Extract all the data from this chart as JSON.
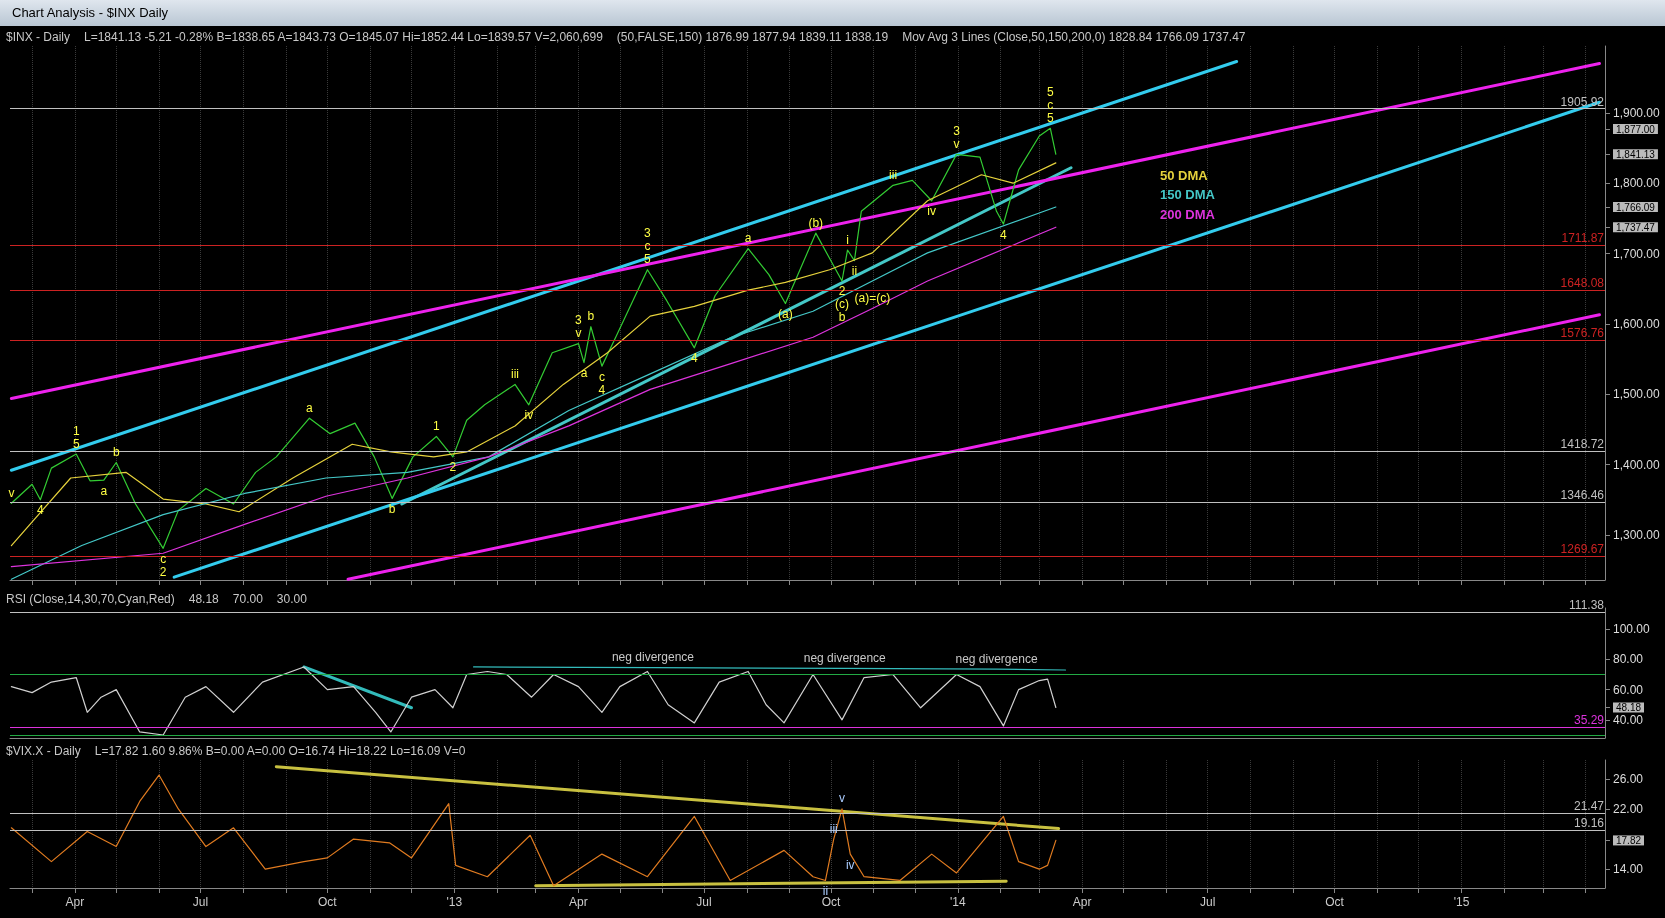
{
  "chart_data": [
    {
      "type": "line",
      "title": "Chart Analysis - $INX Daily",
      "xlim": [
        "2012-02-14",
        "2015-04-15"
      ],
      "xticks": [
        {
          "value": "2012-03-01",
          "label": null
        },
        {
          "value": "2012-04-01",
          "label": null
        },
        {
          "value": "2012-05-01",
          "label": null
        },
        {
          "value": "2012-06-01",
          "label": null
        },
        {
          "value": "2012-07-01",
          "label": null
        },
        {
          "value": "2012-08-01",
          "label": null
        },
        {
          "value": "2012-09-01",
          "label": null
        },
        {
          "value": "2012-10-01",
          "label": null
        },
        {
          "value": "2012-11-01",
          "label": null
        },
        {
          "value": "2012-12-01",
          "label": null
        },
        {
          "value": "2013-01-01",
          "label": null
        },
        {
          "value": "2013-02-01",
          "label": null
        },
        {
          "value": "2013-03-01",
          "label": null
        },
        {
          "value": "2013-04-01",
          "label": null
        },
        {
          "value": "2013-05-01",
          "label": null
        },
        {
          "value": "2013-06-01",
          "label": null
        },
        {
          "value": "2013-07-01",
          "label": null
        },
        {
          "value": "2013-08-01",
          "label": null
        },
        {
          "value": "2013-09-01",
          "label": null
        },
        {
          "value": "2013-10-01",
          "label": null
        },
        {
          "value": "2013-11-01",
          "label": null
        },
        {
          "value": "2013-12-01",
          "label": null
        },
        {
          "value": "2014-01-01",
          "label": null
        },
        {
          "value": "2014-02-01",
          "label": null
        },
        {
          "value": "2014-03-01",
          "label": null
        },
        {
          "value": "2014-04-01",
          "label": null
        },
        {
          "value": "2014-05-01",
          "label": null
        },
        {
          "value": "2014-06-01",
          "label": null
        },
        {
          "value": "2014-07-01",
          "label": null
        },
        {
          "value": "2014-08-01",
          "label": null
        },
        {
          "value": "2014-09-01",
          "label": null
        },
        {
          "value": "2014-10-01",
          "label": null
        },
        {
          "value": "2014-11-01",
          "label": null
        },
        {
          "value": "2014-12-01",
          "label": null
        },
        {
          "value": "2015-01-01",
          "label": null
        },
        {
          "value": "2015-02-01",
          "label": null
        },
        {
          "value": "2015-03-01",
          "label": null
        },
        {
          "value": "2015-04-01",
          "label": null
        }
      ],
      "ylim": [
        1236,
        1995
      ],
      "yticks": [
        {
          "value": 1300,
          "label": "1,300.00"
        },
        {
          "value": 1400,
          "label": "1,400.00"
        },
        {
          "value": 1500,
          "label": "1,500.00"
        },
        {
          "value": 1600,
          "label": "1,600.00"
        },
        {
          "value": 1700,
          "label": "1,700.00"
        },
        {
          "value": 1737.47,
          "label": "1,737.47"
        },
        {
          "value": 1766.09,
          "label": "1,766.09"
        },
        {
          "value": 1800,
          "label": "1,800.00"
        },
        {
          "value": 1841.13,
          "label": "1,841.13"
        },
        {
          "value": 1877,
          "label": "1,877.00"
        },
        {
          "value": 1900,
          "label": "1,900.00"
        }
      ],
      "tick_labels": "y",
      "grid": "x",
      "legend": "right",
      "series": [
        {
          "color": "#33cc33",
          "x": [
            "2012-02-15",
            "2012-03-01",
            "2012-03-07",
            "2012-03-15",
            "2012-04-02",
            "2012-04-12",
            "2012-04-22",
            "2012-05-01",
            "2012-05-15",
            "2012-06-04",
            "2012-06-15",
            "2012-07-05",
            "2012-07-25",
            "2012-08-10",
            "2012-08-25",
            "2012-09-18",
            "2012-10-03",
            "2012-10-21",
            "2012-11-04",
            "2012-11-17",
            "2012-12-02",
            "2012-12-19",
            "2012-12-31",
            "2013-01-10",
            "2013-01-23",
            "2013-02-14",
            "2013-02-24",
            "2013-03-13",
            "2013-04-01",
            "2013-04-05",
            "2013-04-10",
            "2013-04-18",
            "2013-04-28",
            "2013-05-21",
            "2013-06-04",
            "2013-06-24",
            "2013-07-09",
            "2013-08-02",
            "2013-08-17",
            "2013-08-29",
            "2013-09-20",
            "2013-10-09",
            "2013-10-13",
            "2013-10-18",
            "2013-10-23",
            "2013-11-15",
            "2013-11-29",
            "2013-12-13",
            "2013-12-31",
            "2014-01-17",
            "2014-01-29",
            "2014-02-03",
            "2014-02-14",
            "2014-03-01",
            "2014-03-09",
            "2014-03-13"
          ],
          "values": [
            1345,
            1372,
            1350,
            1395,
            1415,
            1377,
            1378,
            1403,
            1344,
            1281,
            1335,
            1366,
            1344,
            1389,
            1411,
            1466,
            1444,
            1459,
            1411,
            1352,
            1411,
            1440,
            1411,
            1463,
            1485,
            1514,
            1485,
            1559,
            1572,
            1545,
            1596,
            1540,
            1581,
            1677,
            1633,
            1566,
            1640,
            1707,
            1670,
            1629,
            1729,
            1661,
            1705,
            1690,
            1760,
            1797,
            1804,
            1775,
            1841,
            1837,
            1760,
            1742,
            1819,
            1867,
            1878,
            1841.13
          ]
        },
        {
          "name": "50 DMA",
          "color": "#e6d23c",
          "x": [
            "2012-02-15",
            "2012-03-29",
            "2012-05-08",
            "2012-06-04",
            "2012-07-05",
            "2012-07-29",
            "2012-09-06",
            "2012-10-19",
            "2012-11-16",
            "2012-12-17",
            "2013-01-10",
            "2013-02-14",
            "2013-03-21",
            "2013-04-22",
            "2013-05-23",
            "2013-06-24",
            "2013-08-02",
            "2013-08-29",
            "2013-09-30",
            "2013-10-31",
            "2013-12-10",
            "2014-01-18",
            "2014-02-10",
            "2014-03-13"
          ],
          "values": [
            1285,
            1381,
            1389,
            1351,
            1344,
            1333,
            1381,
            1429,
            1418,
            1411,
            1418,
            1455,
            1514,
            1559,
            1611,
            1625,
            1648,
            1659,
            1677,
            1701,
            1775,
            1812,
            1800,
            1828.84
          ]
        },
        {
          "name": "150 DMA",
          "color": "#44c8c8",
          "x": [
            "2012-02-15",
            "2012-04-06",
            "2012-06-04",
            "2012-08-02",
            "2012-09-30",
            "2012-11-28",
            "2013-01-26",
            "2013-03-25",
            "2013-05-23",
            "2013-07-21",
            "2013-09-18",
            "2013-12-10",
            "2014-03-13"
          ],
          "values": [
            1237,
            1285,
            1329,
            1359,
            1381,
            1389,
            1411,
            1477,
            1529,
            1581,
            1618,
            1701,
            1766.09
          ]
        },
        {
          "name": "200 DMA",
          "color": "#dd33dd",
          "x": [
            "2012-02-15",
            "2012-06-04",
            "2012-08-02",
            "2012-09-30",
            "2012-11-28",
            "2013-01-26",
            "2013-03-25",
            "2013-05-23",
            "2013-07-21",
            "2013-09-18",
            "2013-10-31",
            "2013-12-10",
            "2014-03-13"
          ],
          "values": [
            1255,
            1274,
            1315,
            1355,
            1381,
            1411,
            1455,
            1507,
            1544,
            1581,
            1622,
            1661,
            1737.47
          ]
        },
        {
          "color": "#44c8c8",
          "x": [
            "2012-11-24",
            "2014-03-24"
          ],
          "values": [
            1344,
            1822
          ]
        },
        {
          "color": "#33ccee",
          "x": [
            "2012-02-15",
            "2014-07-22"
          ],
          "values": [
            1392,
            1973
          ]
        },
        {
          "color": "#33ccee",
          "x": [
            "2012-06-12",
            "2015-04-11"
          ],
          "values": [
            1240,
            1915
          ]
        },
        {
          "color": "#ee22ee",
          "x": [
            "2012-02-15",
            "2015-04-11"
          ],
          "values": [
            1494,
            1970
          ]
        },
        {
          "color": "#ee22ee",
          "x": [
            "2012-10-16",
            "2015-04-11"
          ],
          "values": [
            1237,
            1613
          ]
        }
      ],
      "ref_lines": [
        {
          "axis": "y",
          "value": 1905.92,
          "label": "1905.92",
          "color": "#c0c0c0"
        },
        {
          "axis": "y",
          "value": 1711.87,
          "label": "1711.87",
          "color": "#cc2222"
        },
        {
          "axis": "y",
          "value": 1648.08,
          "label": "1648.08",
          "color": "#cc2222"
        },
        {
          "axis": "y",
          "value": 1576.76,
          "label": "1576.76",
          "color": "#cc2222"
        },
        {
          "axis": "y",
          "value": 1418.72,
          "label": "1418.72",
          "color": "#c0c0c0"
        },
        {
          "axis": "y",
          "value": 1346.46,
          "label": "1346.46",
          "color": "#c0c0c0"
        },
        {
          "axis": "y",
          "value": 1269.67,
          "label": "1269.67",
          "color": "#cc2222"
        }
      ],
      "annotations": [
        "$INX - Daily",
        "L=1841.13 -5.21 -0.28% B=1838.65 A=1843.73 O=1845.07 Hi=1852.44 Lo=1839.57 V=2,060,699",
        "(50,FALSE,150) 1876.99 1877.94 1839.11 1838.19",
        "Mov Avg 3 Lines (Close,50,150,200,0) 1828.84 1766.09 1737.47",
        {
          "text": "v",
          "x": "2012-02-15",
          "y": 1345
        },
        {
          "text": "4",
          "x": "2012-03-07",
          "y": 1350
        },
        {
          "text": "1\n5",
          "x": "2012-04-02",
          "y": 1415
        },
        {
          "text": "a",
          "x": "2012-04-22",
          "y": 1378
        },
        {
          "text": "b",
          "x": "2012-05-01",
          "y": 1403
        },
        {
          "text": "c\n2",
          "x": "2012-06-04",
          "y": 1281
        },
        {
          "text": "a",
          "x": "2012-09-18",
          "y": 1466
        },
        {
          "text": "b",
          "x": "2012-11-17",
          "y": 1352
        },
        {
          "text": "1",
          "x": "2012-12-19",
          "y": 1440
        },
        {
          "text": "2",
          "x": "2012-12-31",
          "y": 1411
        },
        {
          "text": "iii",
          "x": "2013-02-14",
          "y": 1514
        },
        {
          "text": "iv",
          "x": "2013-02-24",
          "y": 1485
        },
        {
          "text": "3\nv",
          "x": "2013-04-01",
          "y": 1572
        },
        {
          "text": "a",
          "x": "2013-04-05",
          "y": 1545
        },
        {
          "text": "b",
          "x": "2013-04-10",
          "y": 1596
        },
        {
          "text": "c\n4",
          "x": "2013-04-18",
          "y": 1540
        },
        {
          "text": "3\nc\n5",
          "x": "2013-05-21",
          "y": 1677
        },
        {
          "text": "4",
          "x": "2013-06-24",
          "y": 1566
        },
        {
          "text": "a",
          "x": "2013-08-02",
          "y": 1707
        },
        {
          "text": "(a)",
          "x": "2013-08-29",
          "y": 1629
        },
        {
          "text": "(b)",
          "x": "2013-09-20",
          "y": 1729
        },
        {
          "text": "2\n(c)\nb",
          "x": "2013-10-09",
          "y": 1661
        },
        {
          "text": "i",
          "x": "2013-10-13",
          "y": 1705
        },
        {
          "text": "ii",
          "x": "2013-10-18",
          "y": 1690
        },
        {
          "text": "(a)=(c)",
          "x": "2013-10-31",
          "y": 1622
        },
        {
          "text": "iii",
          "x": "2013-11-15",
          "y": 1797
        },
        {
          "text": "iv",
          "x": "2013-12-13",
          "y": 1775
        },
        {
          "text": "3\nv",
          "x": "2013-12-31",
          "y": 1841
        },
        {
          "text": "4",
          "x": "2014-02-03",
          "y": 1742
        },
        {
          "text": "5\nc\n5",
          "x": "2014-03-09",
          "y": 1878
        }
      ]
    },
    {
      "type": "line",
      "xlim": [
        "2012-02-14",
        "2015-04-15"
      ],
      "ylim": [
        28,
        114
      ],
      "yticks": [
        {
          "value": 40,
          "label": "40.00"
        },
        {
          "value": 48.18,
          "label": "48.18"
        },
        {
          "value": 60,
          "label": "60.00"
        },
        {
          "value": 80,
          "label": "80.00"
        },
        {
          "value": 100,
          "label": "100.00"
        }
      ],
      "tick_labels": "y",
      "series": [
        {
          "color": "#d0d0d0",
          "x": [
            "2012-02-15",
            "2012-03-01",
            "2012-03-15",
            "2012-04-02",
            "2012-04-10",
            "2012-04-20",
            "2012-05-01",
            "2012-05-18",
            "2012-06-04",
            "2012-06-20",
            "2012-07-05",
            "2012-07-25",
            "2012-08-15",
            "2012-09-14",
            "2012-10-01",
            "2012-10-20",
            "2012-11-05",
            "2012-11-16",
            "2012-12-01",
            "2012-12-18",
            "2012-12-31",
            "2013-01-10",
            "2013-01-25",
            "2013-02-08",
            "2013-02-26",
            "2013-03-14",
            "2013-04-01",
            "2013-04-18",
            "2013-05-01",
            "2013-05-21",
            "2013-06-05",
            "2013-06-24",
            "2013-07-12",
            "2013-08-02",
            "2013-08-15",
            "2013-08-28",
            "2013-09-18",
            "2013-10-09",
            "2013-10-25",
            "2013-11-15",
            "2013-12-05",
            "2013-12-31",
            "2014-01-17",
            "2014-02-03",
            "2014-02-14",
            "2014-03-01",
            "2014-03-07",
            "2014-03-13"
          ],
          "values": [
            62,
            58,
            65,
            68,
            45,
            55,
            60,
            32,
            30,
            55,
            62,
            45,
            65,
            75,
            60,
            62,
            45,
            32,
            55,
            60,
            48,
            70,
            72,
            70,
            55,
            70,
            62,
            45,
            62,
            72,
            50,
            38,
            65,
            72,
            50,
            38,
            70,
            40,
            68,
            70,
            48,
            70,
            62,
            36,
            60,
            66,
            67,
            48.18
          ]
        },
        {
          "color": "#33bbbb",
          "x": [
            "2012-09-14",
            "2012-12-01"
          ],
          "values": [
            75,
            48
          ]
        },
        {
          "color": "#33bbbb",
          "x": [
            "2013-01-15",
            "2013-05-25",
            "2013-10-11",
            "2014-01-29",
            "2014-03-20"
          ],
          "values": [
            75,
            74.6,
            74,
            73.5,
            73
          ]
        }
      ],
      "ref_lines": [
        {
          "axis": "y",
          "value": 111.38,
          "label": "111.38",
          "color": "#c0c0c0"
        },
        {
          "axis": "y",
          "value": 70,
          "label": null,
          "color": "#22aa44"
        },
        {
          "axis": "y",
          "value": 30,
          "label": null,
          "color": "#22aa44"
        },
        {
          "axis": "y",
          "value": 35.29,
          "label": "35.29",
          "color": "#dd33dd"
        }
      ],
      "annotations": [
        "RSI (Close,14,30,70,Cyan,Red)",
        "48.18",
        "70.00",
        "30.00",
        {
          "text": "neg divergence",
          "x": "2013-05-25",
          "y": 74.6
        },
        {
          "text": "neg divergence",
          "x": "2013-10-11",
          "y": 74
        },
        {
          "text": "neg divergence",
          "x": "2014-01-29",
          "y": 73.5
        }
      ]
    },
    {
      "type": "line",
      "xlim": [
        "2012-02-14",
        "2015-04-15"
      ],
      "xticks": [
        {
          "value": "2012-03-01",
          "label": null
        },
        {
          "value": "2012-04-01",
          "label": "Apr"
        },
        {
          "value": "2012-05-01",
          "label": null
        },
        {
          "value": "2012-06-01",
          "label": null
        },
        {
          "value": "2012-07-01",
          "label": "Jul"
        },
        {
          "value": "2012-08-01",
          "label": null
        },
        {
          "value": "2012-09-01",
          "label": null
        },
        {
          "value": "2012-10-01",
          "label": "Oct"
        },
        {
          "value": "2012-11-01",
          "label": null
        },
        {
          "value": "2012-12-01",
          "label": null
        },
        {
          "value": "2013-01-01",
          "label": "'13"
        },
        {
          "value": "2013-02-01",
          "label": null
        },
        {
          "value": "2013-03-01",
          "label": null
        },
        {
          "value": "2013-04-01",
          "label": "Apr"
        },
        {
          "value": "2013-05-01",
          "label": null
        },
        {
          "value": "2013-06-01",
          "label": null
        },
        {
          "value": "2013-07-01",
          "label": "Jul"
        },
        {
          "value": "2013-08-01",
          "label": null
        },
        {
          "value": "2013-09-01",
          "label": null
        },
        {
          "value": "2013-10-01",
          "label": "Oct"
        },
        {
          "value": "2013-11-01",
          "label": null
        },
        {
          "value": "2013-12-01",
          "label": null
        },
        {
          "value": "2014-01-01",
          "label": "'14"
        },
        {
          "value": "2014-02-01",
          "label": null
        },
        {
          "value": "2014-03-01",
          "label": null
        },
        {
          "value": "2014-04-01",
          "label": "Apr"
        },
        {
          "value": "2014-05-01",
          "label": null
        },
        {
          "value": "2014-06-01",
          "label": null
        },
        {
          "value": "2014-07-01",
          "label": "Jul"
        },
        {
          "value": "2014-08-01",
          "label": null
        },
        {
          "value": "2014-09-01",
          "label": null
        },
        {
          "value": "2014-10-01",
          "label": "Oct"
        },
        {
          "value": "2014-11-01",
          "label": null
        },
        {
          "value": "2014-12-01",
          "label": null
        },
        {
          "value": "2015-01-01",
          "label": "'15"
        },
        {
          "value": "2015-02-01",
          "label": null
        },
        {
          "value": "2015-03-01",
          "label": null
        },
        {
          "value": "2015-04-01",
          "label": null
        }
      ],
      "ylim": [
        11.5,
        28.5
      ],
      "yticks": [
        {
          "value": 14,
          "label": "14.00"
        },
        {
          "value": 17.82,
          "label": "17.82"
        },
        {
          "value": 22,
          "label": "22.00"
        },
        {
          "value": 26,
          "label": "26.00"
        }
      ],
      "grid": "x",
      "series": [
        {
          "color": "#e07b20",
          "x": [
            "2012-02-15",
            "2012-03-15",
            "2012-04-10",
            "2012-05-01",
            "2012-05-18",
            "2012-06-01",
            "2012-06-15",
            "2012-07-05",
            "2012-07-25",
            "2012-08-17",
            "2012-09-14",
            "2012-10-01",
            "2012-10-20",
            "2012-11-15",
            "2012-12-01",
            "2012-12-28",
            "2013-01-02",
            "2013-01-25",
            "2013-02-25",
            "2013-03-14",
            "2013-04-18",
            "2013-05-21",
            "2013-06-24",
            "2013-07-20",
            "2013-08-28",
            "2013-09-18",
            "2013-09-27",
            "2013-10-03",
            "2013-10-09",
            "2013-10-15",
            "2013-10-25",
            "2013-11-20",
            "2013-12-13",
            "2013-12-31",
            "2014-02-03",
            "2014-02-14",
            "2014-03-01",
            "2014-03-07",
            "2014-03-13"
          ],
          "values": [
            19.5,
            15,
            19,
            17,
            23,
            26.5,
            22,
            17,
            19.5,
            14,
            15,
            15.5,
            18,
            17.5,
            15.5,
            22.7,
            14.5,
            13,
            18.5,
            11.8,
            16,
            13,
            21,
            12.5,
            16.5,
            13,
            12.5,
            18,
            22,
            16,
            13,
            12.5,
            16,
            13.5,
            21,
            15,
            14,
            14.5,
            17.82
          ]
        },
        {
          "color": "#c8c040",
          "x": [
            "2012-08-25",
            "2014-03-15"
          ],
          "values": [
            27.6,
            19.4
          ]
        },
        {
          "color": "#c8c040",
          "x": [
            "2013-03-01",
            "2014-02-05"
          ],
          "values": [
            11.8,
            12.4
          ]
        }
      ],
      "ref_lines": [
        {
          "axis": "y",
          "value": 21.47,
          "label": "21.47",
          "color": "#c0c0c0"
        },
        {
          "axis": "y",
          "value": 19.16,
          "label": "19.16",
          "color": "#c0c0c0"
        }
      ],
      "annotations": [
        "$VIX.X - Daily",
        "L=17.82 1.60 9.86% B=0.00 A=0.00 O=16.74 Hi=18.22 Lo=16.09 V=0",
        {
          "text": "ii",
          "x": "2013-09-27",
          "y": 12.5
        },
        {
          "text": "iii",
          "x": "2013-10-03",
          "y": 18
        },
        {
          "text": "v",
          "x": "2013-10-09",
          "y": 22
        },
        {
          "text": "iv",
          "x": "2013-10-15",
          "y": 16
        }
      ]
    }
  ]
}
